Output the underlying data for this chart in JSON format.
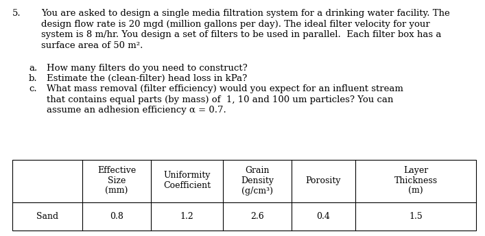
{
  "number": "5.",
  "main_text_lines": [
    "You are asked to design a single media filtration system for a drinking water facility. The",
    "design flow rate is 20 mgd (million gallons per day). The ideal filter velocity for your",
    "system is 8 m/hr. You design a set of filters to be used in parallel.  Each filter box has a",
    "surface area of 50 m²."
  ],
  "sub_items_letters": [
    "a.",
    "b.",
    "c."
  ],
  "sub_item_a": "How many filters do you need to construct?",
  "sub_item_b": "Estimate the (clean-filter) head loss in kPa?",
  "sub_item_c_lines": [
    "What mass removal (filter efficiency) would you expect for an influent stream",
    "that contains equal parts (by mass) of  1, 10 and 100 um particles? You can",
    "assume an adhesion efficiency α = 0.7."
  ],
  "table_col_headers": [
    "",
    "Effective\nSize\n(mm)",
    "Uniformity\nCoefficient",
    "Grain\nDensity\n(g/cm³)",
    "Porosity",
    "Layer\nThickness\n(m)"
  ],
  "table_data_row": [
    "Sand",
    "0.8",
    "1.2",
    "2.6",
    "0.4",
    "1.5"
  ],
  "font_size": 9.5,
  "table_font_size": 9.0,
  "font_family": "DejaVu Serif",
  "bg_color": "#ffffff",
  "text_color": "#000000",
  "fig_width": 7.07,
  "fig_height": 3.44,
  "dpi": 100
}
